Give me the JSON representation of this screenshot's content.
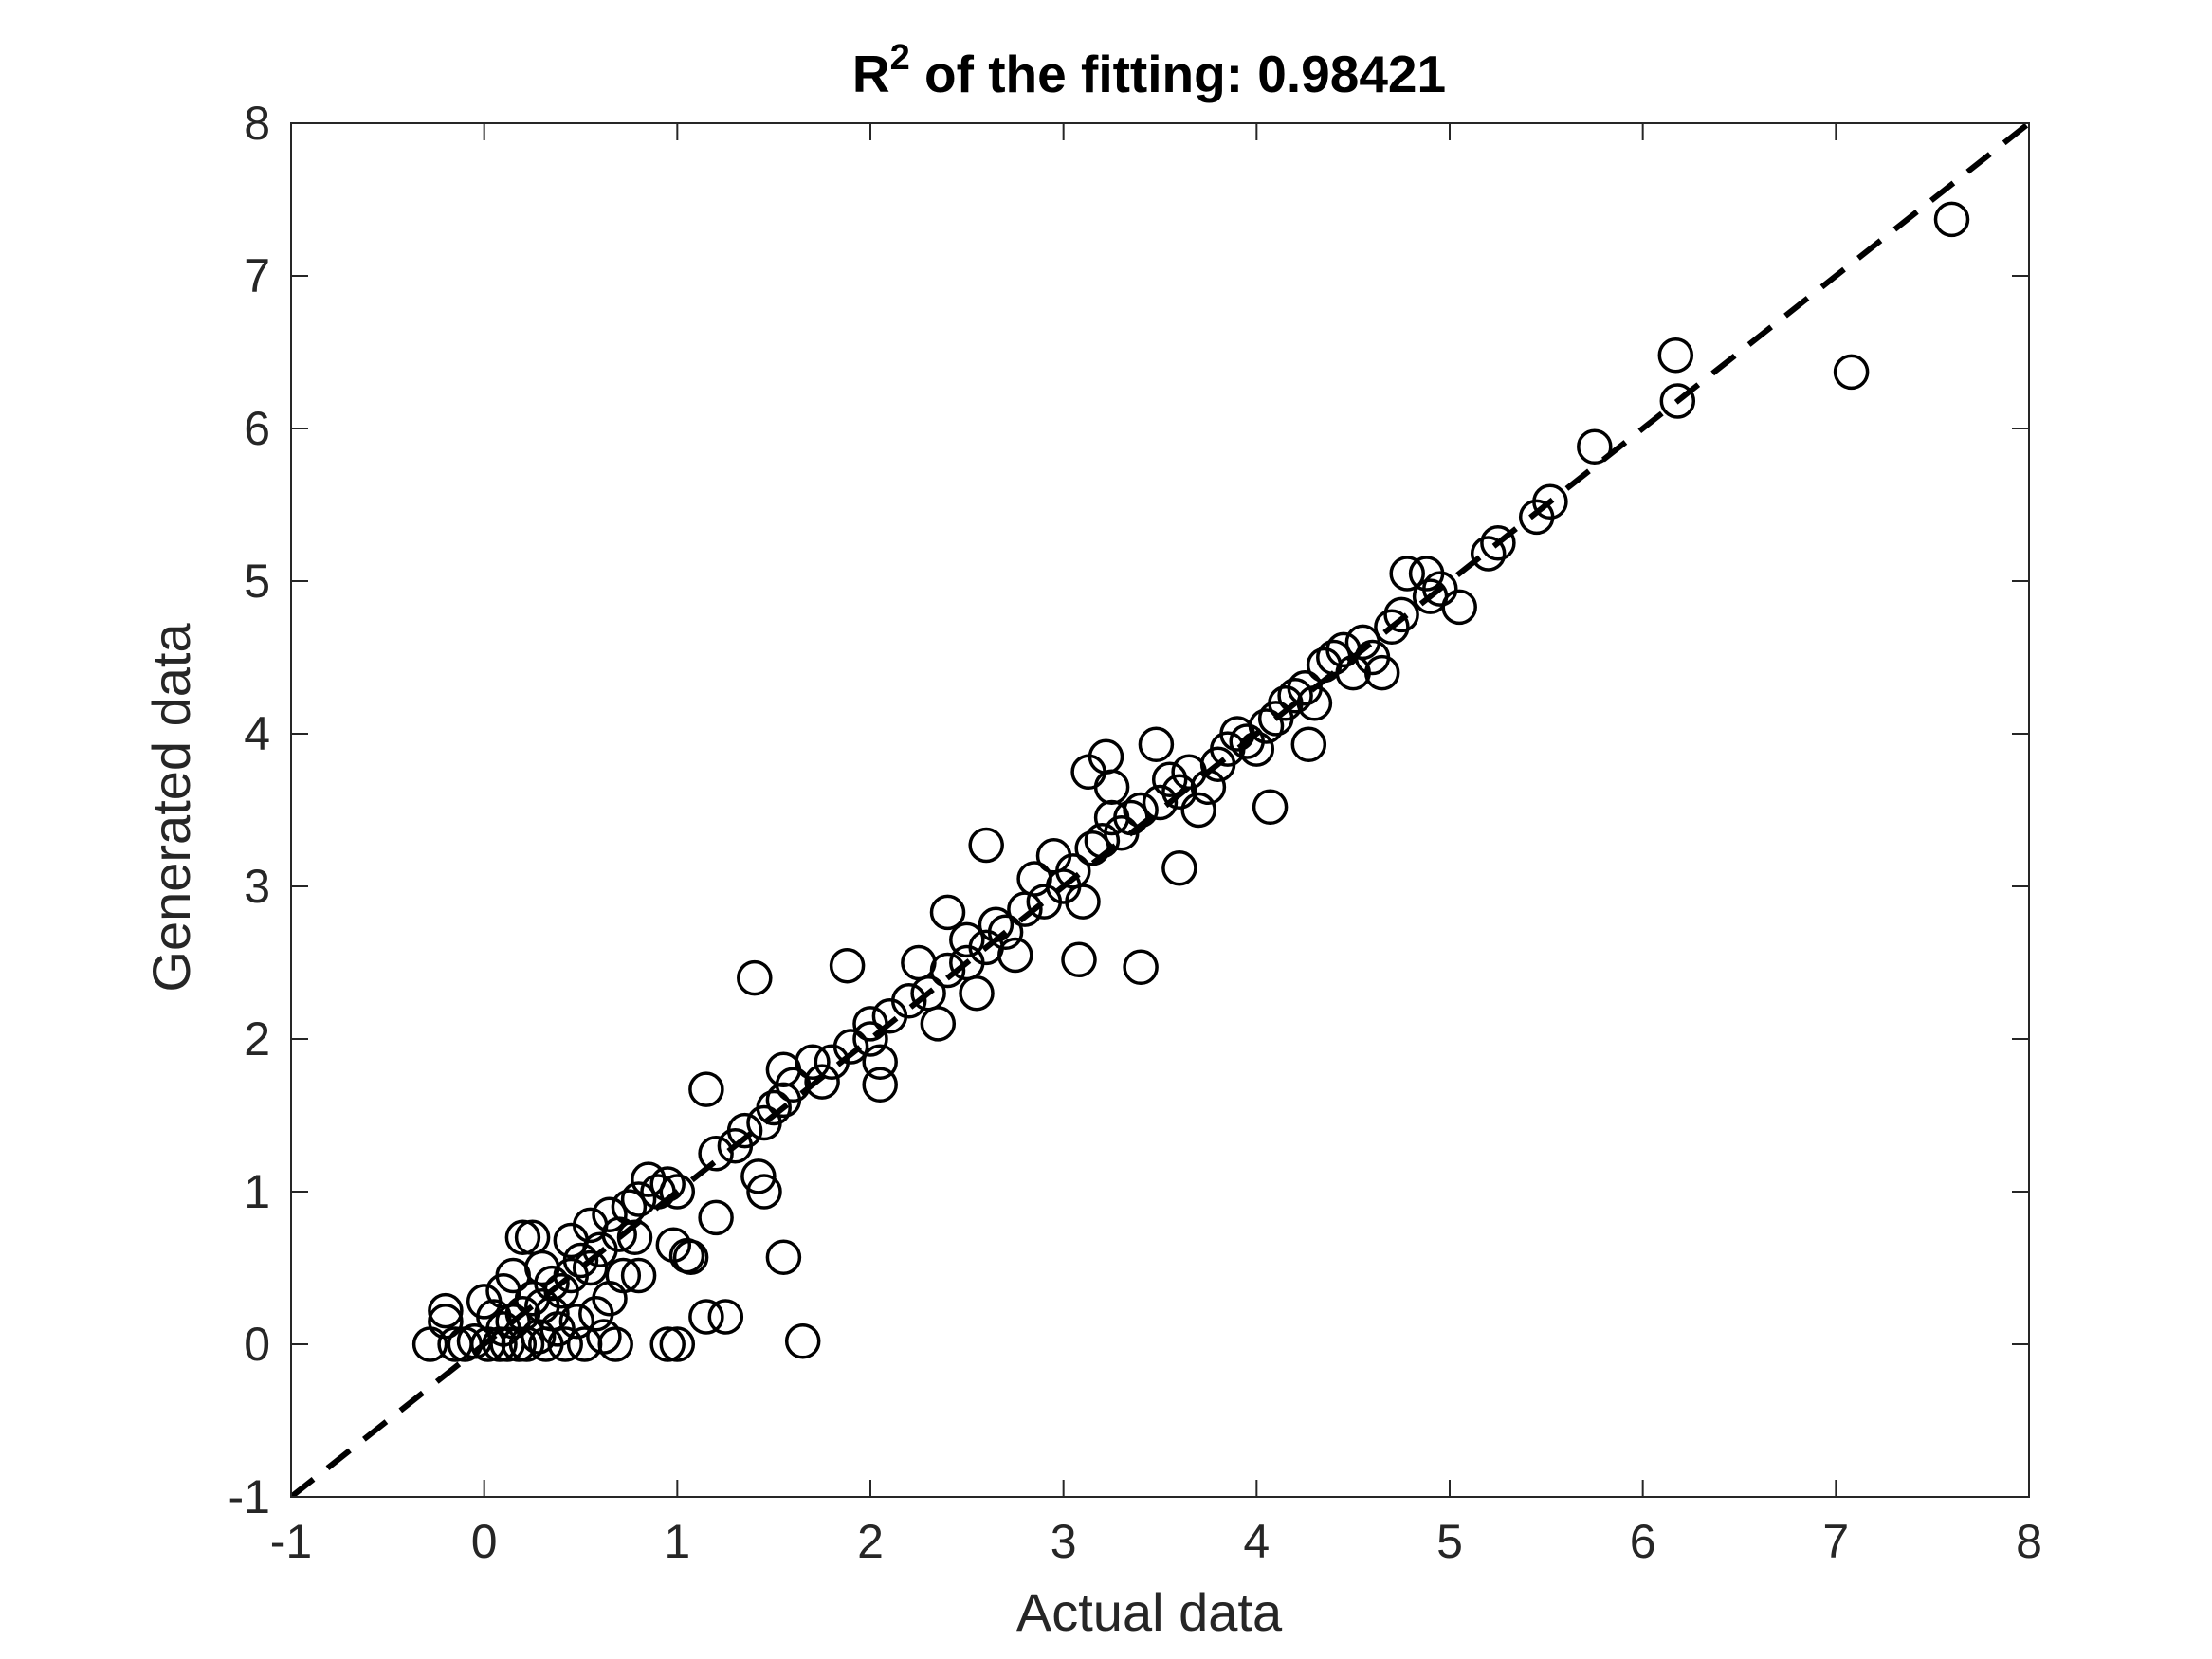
{
  "chart_data": {
    "type": "scatter",
    "title": {
      "base": "R",
      "superscript": "2",
      "rest": " of the fitting: 0.98421"
    },
    "xlabel": "Actual data",
    "ylabel": "Generated data",
    "xlim": [
      -1,
      8
    ],
    "ylim": [
      -1,
      8
    ],
    "xticks": [
      -1,
      0,
      1,
      2,
      3,
      4,
      5,
      6,
      7,
      8
    ],
    "yticks": [
      -1,
      0,
      1,
      2,
      3,
      4,
      5,
      6,
      7,
      8
    ],
    "grid": false,
    "legend": "none",
    "marker": "open-circle",
    "reference_line": {
      "style": "dashed",
      "color": "#000000",
      "from": [
        -1,
        -1
      ],
      "to": [
        8,
        8
      ]
    },
    "series": [
      {
        "color": "#000000",
        "points": [
          [
            -0.28,
            0.0
          ],
          [
            -0.2,
            0.22
          ],
          [
            -0.2,
            0.15
          ],
          [
            -0.15,
            0.0
          ],
          [
            -0.1,
            0.0
          ],
          [
            -0.05,
            0.02
          ],
          [
            0.0,
            0.28
          ],
          [
            0.02,
            0.0
          ],
          [
            0.05,
            0.18
          ],
          [
            0.08,
            0.0
          ],
          [
            0.1,
            0.1
          ],
          [
            0.12,
            0.0
          ],
          [
            0.15,
            0.15
          ],
          [
            0.18,
            0.0
          ],
          [
            0.2,
            0.2
          ],
          [
            0.22,
            0.0
          ],
          [
            0.25,
            0.3
          ],
          [
            0.28,
            0.05
          ],
          [
            0.3,
            0.25
          ],
          [
            0.32,
            0.0
          ],
          [
            0.35,
            0.4
          ],
          [
            0.38,
            0.1
          ],
          [
            0.4,
            0.35
          ],
          [
            0.42,
            0.0
          ],
          [
            0.45,
            0.45
          ],
          [
            0.48,
            0.15
          ],
          [
            0.5,
            0.55
          ],
          [
            0.52,
            0.0
          ],
          [
            0.55,
            0.5
          ],
          [
            0.58,
            0.2
          ],
          [
            0.6,
            0.62
          ],
          [
            0.62,
            0.05
          ],
          [
            0.65,
            0.3
          ],
          [
            0.68,
            0.0
          ],
          [
            0.7,
            0.72
          ],
          [
            0.72,
            0.45
          ],
          [
            0.2,
            0.7
          ],
          [
            0.25,
            0.7
          ],
          [
            0.3,
            0.5
          ],
          [
            0.15,
            0.45
          ],
          [
            0.1,
            0.35
          ],
          [
            0.35,
            0.2
          ],
          [
            0.45,
            0.68
          ],
          [
            0.55,
            0.78
          ],
          [
            0.65,
            0.85
          ],
          [
            0.75,
            0.9
          ],
          [
            0.8,
            0.95
          ],
          [
            0.78,
            0.7
          ],
          [
            0.8,
            0.45
          ],
          [
            0.85,
            1.08
          ],
          [
            0.9,
            1.0
          ],
          [
            0.95,
            1.05
          ],
          [
            1.0,
            1.0
          ],
          [
            0.98,
            0.65
          ],
          [
            1.05,
            0.58
          ],
          [
            1.07,
            0.57
          ],
          [
            1.2,
            0.83
          ],
          [
            1.15,
            0.18
          ],
          [
            1.25,
            0.18
          ],
          [
            1.0,
            0.0
          ],
          [
            0.95,
            0.0
          ],
          [
            1.55,
            0.57
          ],
          [
            1.65,
            0.02
          ],
          [
            1.45,
            1.0
          ],
          [
            1.42,
            1.1
          ],
          [
            1.15,
            1.67
          ],
          [
            1.4,
            2.4
          ],
          [
            1.2,
            1.25
          ],
          [
            1.3,
            1.3
          ],
          [
            1.35,
            1.4
          ],
          [
            1.45,
            1.45
          ],
          [
            1.5,
            1.55
          ],
          [
            1.55,
            1.6
          ],
          [
            1.6,
            1.7
          ],
          [
            1.55,
            1.8
          ],
          [
            1.7,
            1.85
          ],
          [
            1.75,
            1.72
          ],
          [
            1.8,
            1.85
          ],
          [
            1.9,
            1.95
          ],
          [
            2.0,
            2.0
          ],
          [
            2.05,
            1.85
          ],
          [
            2.05,
            1.7
          ],
          [
            2.0,
            2.1
          ],
          [
            2.1,
            2.15
          ],
          [
            2.2,
            2.25
          ],
          [
            2.3,
            2.3
          ],
          [
            2.25,
            2.5
          ],
          [
            2.35,
            2.1
          ],
          [
            2.4,
            2.45
          ],
          [
            2.5,
            2.5
          ],
          [
            2.5,
            2.65
          ],
          [
            2.55,
            2.3
          ],
          [
            2.6,
            2.6
          ],
          [
            2.65,
            2.75
          ],
          [
            2.7,
            2.7
          ],
          [
            2.75,
            2.55
          ],
          [
            2.8,
            2.85
          ],
          [
            2.85,
            3.05
          ],
          [
            2.9,
            2.9
          ],
          [
            2.95,
            3.2
          ],
          [
            3.0,
            3.0
          ],
          [
            3.05,
            3.1
          ],
          [
            3.1,
            2.9
          ],
          [
            3.15,
            3.25
          ],
          [
            3.2,
            3.3
          ],
          [
            3.25,
            3.45
          ],
          [
            1.88,
            2.48
          ],
          [
            2.4,
            2.83
          ],
          [
            2.6,
            3.27
          ],
          [
            3.08,
            2.52
          ],
          [
            3.4,
            2.47
          ],
          [
            3.3,
            3.35
          ],
          [
            3.35,
            3.45
          ],
          [
            3.4,
            3.5
          ],
          [
            3.5,
            3.55
          ],
          [
            3.55,
            3.7
          ],
          [
            3.6,
            3.62
          ],
          [
            3.65,
            3.75
          ],
          [
            3.7,
            3.5
          ],
          [
            3.75,
            3.65
          ],
          [
            3.8,
            3.8
          ],
          [
            3.85,
            3.9
          ],
          [
            3.9,
            4.0
          ],
          [
            3.95,
            3.95
          ],
          [
            4.0,
            3.9
          ],
          [
            4.05,
            4.05
          ],
          [
            4.1,
            4.1
          ],
          [
            4.15,
            4.2
          ],
          [
            4.2,
            4.25
          ],
          [
            4.25,
            4.3
          ],
          [
            4.3,
            4.2
          ],
          [
            4.35,
            4.45
          ],
          [
            4.4,
            4.5
          ],
          [
            4.45,
            4.55
          ],
          [
            4.5,
            4.4
          ],
          [
            4.55,
            4.6
          ],
          [
            4.6,
            4.5
          ],
          [
            4.65,
            4.4
          ],
          [
            3.13,
            3.75
          ],
          [
            3.22,
            3.85
          ],
          [
            3.48,
            3.93
          ],
          [
            3.25,
            3.65
          ],
          [
            3.6,
            3.12
          ],
          [
            4.07,
            3.52
          ],
          [
            4.27,
            3.93
          ],
          [
            4.7,
            4.7
          ],
          [
            4.75,
            4.78
          ],
          [
            4.78,
            5.05
          ],
          [
            4.88,
            5.05
          ],
          [
            4.9,
            4.9
          ],
          [
            4.95,
            4.95
          ],
          [
            5.05,
            4.83
          ],
          [
            5.2,
            5.18
          ],
          [
            5.25,
            5.25
          ],
          [
            5.45,
            5.42
          ],
          [
            5.52,
            5.52
          ],
          [
            5.75,
            5.88
          ],
          [
            6.17,
            6.48
          ],
          [
            6.18,
            6.18
          ],
          [
            7.08,
            6.37
          ],
          [
            7.6,
            7.37
          ]
        ]
      }
    ]
  }
}
